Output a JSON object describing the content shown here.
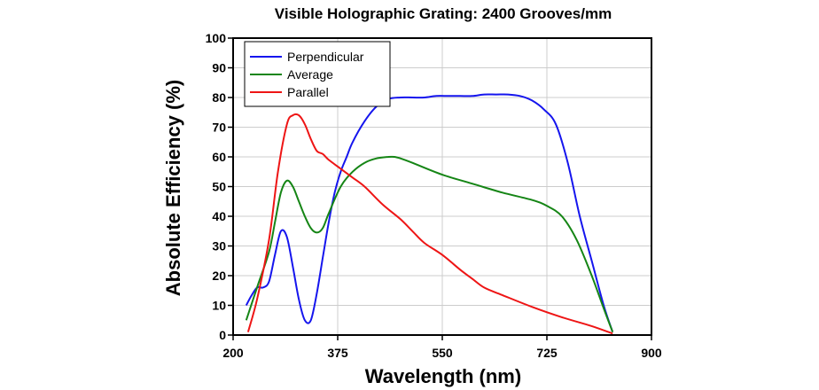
{
  "chart_data": {
    "type": "line",
    "title": "Visible Holographic Grating: 2400 Grooves/mm",
    "xlabel": "Wavelength (nm)",
    "ylabel": "Absolute Efficiency (%)",
    "xlim": [
      200,
      900
    ],
    "ylim": [
      0,
      100
    ],
    "xticks": [
      200,
      375,
      550,
      725,
      900
    ],
    "yticks": [
      0,
      10,
      20,
      30,
      40,
      50,
      60,
      70,
      80,
      90,
      100
    ],
    "grid": true,
    "legend_position": "top-left",
    "colors": {
      "frame": "#000000",
      "grid": "#cccccc"
    },
    "series": [
      {
        "name": "Perpendicular",
        "color": "#1515ee",
        "x": [
          222,
          230,
          240,
          250,
          260,
          270,
          280,
          290,
          300,
          310,
          320,
          330,
          340,
          350,
          360,
          370,
          380,
          390,
          400,
          420,
          440,
          460,
          480,
          500,
          520,
          540,
          560,
          580,
          600,
          620,
          640,
          660,
          680,
          700,
          720,
          740,
          760,
          780,
          800,
          820,
          835
        ],
        "y": [
          10,
          13,
          16,
          16,
          18,
          27,
          35,
          33,
          23,
          12,
          5,
          5,
          14,
          26,
          38,
          48,
          55,
          60,
          65,
          72,
          77,
          79.5,
          80,
          80,
          80,
          80.5,
          80.5,
          80.5,
          80.5,
          81,
          81,
          81,
          80.5,
          79,
          76,
          71,
          58,
          40,
          25,
          10,
          1
        ]
      },
      {
        "name": "Average",
        "color": "#158515",
        "x": [
          222,
          240,
          260,
          270,
          280,
          290,
          300,
          310,
          320,
          330,
          340,
          350,
          360,
          380,
          400,
          420,
          440,
          460,
          470,
          480,
          500,
          550,
          600,
          650,
          700,
          725,
          750,
          775,
          800,
          820,
          835
        ],
        "y": [
          5,
          16,
          28,
          38,
          48,
          52,
          50,
          45,
          40,
          36,
          34.5,
          36,
          41,
          50,
          55,
          58,
          59.5,
          60,
          60,
          59.5,
          58,
          54,
          51,
          48,
          45.5,
          43.5,
          40,
          32,
          20,
          9,
          1
        ]
      },
      {
        "name": "Parallel",
        "color": "#ee1515",
        "x": [
          225,
          240,
          260,
          275,
          290,
          300,
          310,
          320,
          330,
          340,
          350,
          360,
          380,
          400,
          420,
          450,
          480,
          500,
          520,
          550,
          580,
          600,
          620,
          650,
          700,
          750,
          800,
          835
        ],
        "y": [
          1,
          12,
          32,
          55,
          71,
          74,
          74,
          71,
          66,
          62,
          61,
          59,
          56,
          53,
          50,
          44,
          39,
          35,
          31,
          27,
          22,
          19,
          16,
          13.5,
          9.5,
          6,
          3,
          0.5
        ]
      }
    ]
  }
}
